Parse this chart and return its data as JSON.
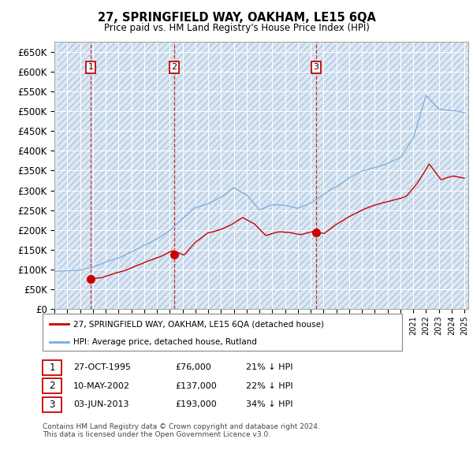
{
  "title": "27, SPRINGFIELD WAY, OAKHAM, LE15 6QA",
  "subtitle": "Price paid vs. HM Land Registry's House Price Index (HPI)",
  "hpi_color": "#7aaadd",
  "price_color": "#cc0000",
  "marker_color": "#cc0000",
  "bg_hatch_color": "#c8d8ec",
  "bg_fill_color": "#dce8f4",
  "ylim": [
    0,
    675000
  ],
  "yticks": [
    0,
    50000,
    100000,
    150000,
    200000,
    250000,
    300000,
    350000,
    400000,
    450000,
    500000,
    550000,
    600000,
    650000
  ],
  "xlim_start": 1993.25,
  "xlim_end": 2025.3,
  "sale_dates": [
    1995.83,
    2002.36,
    2013.42
  ],
  "sale_prices": [
    76000,
    137000,
    193000
  ],
  "sale_labels": [
    "1",
    "2",
    "3"
  ],
  "legend_property": "27, SPRINGFIELD WAY, OAKHAM, LE15 6QA (detached house)",
  "legend_hpi": "HPI: Average price, detached house, Rutland",
  "table_rows": [
    {
      "num": "1",
      "date": "27-OCT-1995",
      "price": "£76,000",
      "pct": "21% ↓ HPI"
    },
    {
      "num": "2",
      "date": "10-MAY-2002",
      "price": "£137,000",
      "pct": "22% ↓ HPI"
    },
    {
      "num": "3",
      "date": "03-JUN-2013",
      "price": "£193,000",
      "pct": "34% ↓ HPI"
    }
  ],
  "footer": "Contains HM Land Registry data © Crown copyright and database right 2024.\nThis data is licensed under the Open Government Licence v3.0."
}
